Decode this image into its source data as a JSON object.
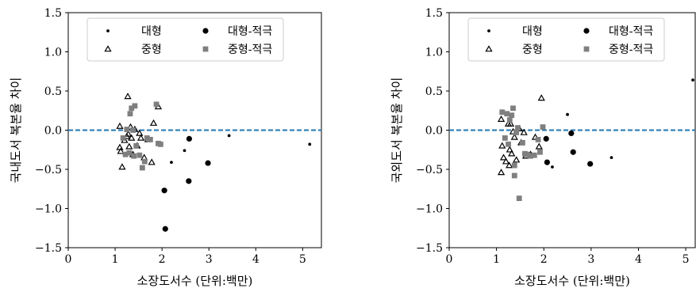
{
  "chart_data": [
    {
      "type": "scatter",
      "xlabel": "소장도서수 (단위:백만)",
      "ylabel": "국내도서 복본율 차이",
      "xlim": [
        0,
        5.4
      ],
      "ylim": [
        -1.5,
        1.5
      ],
      "xticks": [
        "0",
        "1",
        "2",
        "3",
        "4",
        "5"
      ],
      "yticks": [
        "−1.5",
        "−1.0",
        "−0.5",
        "0.0",
        "0.5",
        "1.0",
        "1.5"
      ],
      "reference_line": {
        "y": 0.0,
        "style": "dashed",
        "color": "#1f77b4"
      },
      "legend": {
        "position": "top",
        "columns": 2
      },
      "series": [
        {
          "name": "대형",
          "marker": "small-dot",
          "color": "#000000",
          "points": [
            [
              2.2,
              -0.41
            ],
            [
              2.48,
              -0.26
            ],
            [
              3.43,
              -0.07
            ],
            [
              5.15,
              -0.18
            ]
          ]
        },
        {
          "name": "대형-적극",
          "marker": "dot",
          "color": "#000000",
          "points": [
            [
              2.05,
              -0.77
            ],
            [
              2.07,
              -1.26
            ],
            [
              2.58,
              -0.11
            ],
            [
              2.57,
              -0.65
            ],
            [
              2.98,
              -0.42
            ]
          ]
        },
        {
          "name": "중형",
          "marker": "triangle",
          "color": "#000000",
          "points": [
            [
              1.27,
              0.43
            ],
            [
              1.1,
              0.05
            ],
            [
              1.1,
              -0.22
            ],
            [
              1.12,
              -0.27
            ],
            [
              1.15,
              -0.47
            ],
            [
              1.2,
              -0.13
            ],
            [
              1.25,
              -0.08
            ],
            [
              1.3,
              -0.21
            ],
            [
              1.35,
              -0.1
            ],
            [
              1.42,
              0.01
            ],
            [
              1.47,
              -0.2
            ],
            [
              1.52,
              -0.04
            ],
            [
              1.55,
              -0.1
            ],
            [
              1.62,
              -0.35
            ],
            [
              1.7,
              -0.12
            ],
            [
              1.78,
              -0.41
            ],
            [
              1.82,
              0.09
            ],
            [
              1.92,
              0.3
            ],
            [
              1.38,
              -0.31
            ],
            [
              1.28,
              -0.05
            ],
            [
              1.33,
              0.04
            ]
          ]
        },
        {
          "name": "중형-적극",
          "marker": "square",
          "color": "#7f7f7f",
          "points": [
            [
              1.17,
              -0.1
            ],
            [
              1.22,
              -0.31
            ],
            [
              1.25,
              0.01
            ],
            [
              1.3,
              -0.29
            ],
            [
              1.32,
              0.21
            ],
            [
              1.35,
              0.28
            ],
            [
              1.38,
              0.0
            ],
            [
              1.42,
              0.31
            ],
            [
              1.45,
              -0.2
            ],
            [
              1.52,
              -0.32
            ],
            [
              1.58,
              -0.48
            ],
            [
              1.63,
              -0.4
            ],
            [
              1.68,
              -0.1
            ],
            [
              1.75,
              -0.12
            ],
            [
              1.88,
              0.33
            ],
            [
              1.92,
              -0.17
            ],
            [
              1.97,
              -0.18
            ],
            [
              1.4,
              -0.33
            ]
          ]
        }
      ]
    },
    {
      "type": "scatter",
      "xlabel": "소장도서수 (단위:백만)",
      "ylabel": "국외도서 복본율 차이",
      "xlim": [
        0,
        5.2
      ],
      "ylim": [
        -1.5,
        1.5
      ],
      "xticks": [
        "0",
        "1",
        "2",
        "3",
        "4",
        "5"
      ],
      "yticks": [
        "−1.5",
        "−1.0",
        "−0.5",
        "0.0",
        "0.5",
        "1.0",
        "1.5"
      ],
      "reference_line": {
        "y": 0.0,
        "style": "dashed",
        "color": "#1f77b4"
      },
      "legend": {
        "position": "top",
        "columns": 2
      },
      "series": [
        {
          "name": "대형",
          "marker": "small-dot",
          "color": "#000000",
          "points": [
            [
              2.5,
              0.2
            ],
            [
              2.18,
              -0.47
            ],
            [
              3.43,
              -0.35
            ],
            [
              5.15,
              0.64
            ]
          ]
        },
        {
          "name": "대형-적극",
          "marker": "dot",
          "color": "#000000",
          "points": [
            [
              2.05,
              -0.11
            ],
            [
              2.07,
              -0.41
            ],
            [
              2.58,
              -0.04
            ],
            [
              2.62,
              -0.28
            ],
            [
              2.98,
              -0.43
            ]
          ]
        },
        {
          "name": "중형",
          "marker": "triangle",
          "color": "#000000",
          "points": [
            [
              1.95,
              0.41
            ],
            [
              1.1,
              0.14
            ],
            [
              1.12,
              -0.2
            ],
            [
              1.15,
              -0.35
            ],
            [
              1.1,
              -0.54
            ],
            [
              1.2,
              -0.4
            ],
            [
              1.25,
              0.08
            ],
            [
              1.28,
              -0.25
            ],
            [
              1.32,
              -0.3
            ],
            [
              1.38,
              -0.09
            ],
            [
              1.42,
              -0.38
            ],
            [
              1.48,
              0.02
            ],
            [
              1.52,
              -0.16
            ],
            [
              1.58,
              -0.03
            ],
            [
              1.62,
              -0.33
            ],
            [
              1.72,
              -0.31
            ],
            [
              1.82,
              -0.09
            ],
            [
              1.9,
              -0.21
            ],
            [
              1.3,
              0.08
            ],
            [
              1.35,
              -0.02
            ],
            [
              1.27,
              -0.45
            ]
          ]
        },
        {
          "name": "중형-적극",
          "marker": "square",
          "color": "#7f7f7f",
          "points": [
            [
              1.12,
              0.23
            ],
            [
              1.18,
              -0.1
            ],
            [
              1.22,
              0.21
            ],
            [
              1.28,
              0.13
            ],
            [
              1.32,
              0.19
            ],
            [
              1.35,
              0.28
            ],
            [
              1.38,
              -0.45
            ],
            [
              1.42,
              -0.03
            ],
            [
              1.45,
              0.03
            ],
            [
              1.48,
              -0.87
            ],
            [
              1.55,
              -0.16
            ],
            [
              1.6,
              -0.3
            ],
            [
              1.65,
              -0.31
            ],
            [
              1.72,
              -0.33
            ],
            [
              1.8,
              -0.32
            ],
            [
              1.88,
              -0.12
            ],
            [
              1.92,
              -0.28
            ],
            [
              1.98,
              0.04
            ],
            [
              1.38,
              -0.58
            ],
            [
              1.25,
              -0.18
            ]
          ]
        }
      ]
    }
  ]
}
